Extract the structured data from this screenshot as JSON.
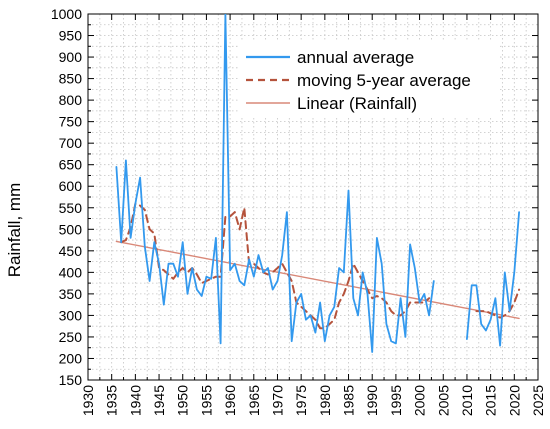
{
  "chart_data": {
    "type": "line",
    "xlabel": "",
    "ylabel": "Rainfall, mm",
    "xlim": [
      1930,
      2025
    ],
    "ylim": [
      150,
      1000
    ],
    "x_ticks": [
      "1930",
      "1935",
      "1940",
      "1945",
      "1950",
      "1955",
      "1960",
      "1965",
      "1970",
      "1975",
      "1980",
      "1985",
      "1990",
      "1995",
      "2000",
      "2005",
      "2010",
      "2015",
      "2020",
      "2025"
    ],
    "y_ticks": [
      "150",
      "200",
      "250",
      "300",
      "350",
      "400",
      "450",
      "500",
      "550",
      "600",
      "650",
      "700",
      "750",
      "800",
      "850",
      "900",
      "950",
      "1000"
    ],
    "grid": true,
    "legend_position": "top-right",
    "colors": {
      "annual": "#3399ee",
      "moving": "#b5533c",
      "linear": "#d98878",
      "grid": "#c4c4c4"
    },
    "series": [
      {
        "name": "annual average",
        "style": "solid",
        "x": [
          1936,
          1937,
          1938,
          1939,
          1940,
          1941,
          1942,
          1943,
          1944,
          1945,
          1946,
          1947,
          1948,
          1949,
          1950,
          1951,
          1952,
          1953,
          1954,
          1955,
          1956,
          1957,
          1958,
          1959,
          1960,
          1961,
          1962,
          1963,
          1964,
          1965,
          1966,
          1967,
          1968,
          1969,
          1970,
          1971,
          1972,
          1973,
          1974,
          1975,
          1976,
          1977,
          1978,
          1979,
          1980,
          1981,
          1982,
          1983,
          1984,
          1985,
          1986,
          1987,
          1988,
          1989,
          1990,
          1991,
          1992,
          1993,
          1994,
          1995,
          1996,
          1997,
          1998,
          1999,
          2000,
          2001,
          2002,
          2003,
          null,
          2010,
          2011,
          2012,
          2013,
          2014,
          2015,
          2016,
          2017,
          2018,
          2019,
          2020,
          2021
        ],
        "y": [
          645,
          470,
          660,
          480,
          560,
          620,
          460,
          380,
          470,
          420,
          325,
          420,
          420,
          390,
          470,
          350,
          410,
          360,
          345,
          390,
          385,
          480,
          235,
          1000,
          405,
          420,
          380,
          370,
          430,
          390,
          440,
          400,
          410,
          360,
          380,
          440,
          540,
          240,
          330,
          350,
          290,
          300,
          260,
          330,
          240,
          300,
          320,
          410,
          400,
          590,
          340,
          300,
          400,
          350,
          215,
          480,
          420,
          280,
          240,
          235,
          340,
          250,
          465,
          410,
          330,
          350,
          300,
          380,
          null,
          245,
          370,
          370,
          280,
          265,
          290,
          340,
          230,
          400,
          310,
          400,
          540
        ]
      },
      {
        "name": "moving 5-year average",
        "style": "dashed",
        "x": [
          1937,
          1938,
          1939,
          1940,
          1941,
          1942,
          1943,
          1944,
          1945,
          1946,
          1947,
          1948,
          1949,
          1950,
          1951,
          1952,
          1953,
          1954,
          1955,
          1956,
          1957,
          1958,
          1959,
          1960,
          1961,
          1962,
          1963,
          1964,
          1965,
          1966,
          1967,
          1968,
          1969,
          1970,
          1971,
          1972,
          1973,
          1974,
          1975,
          1976,
          1977,
          1978,
          1979,
          1980,
          1981,
          1982,
          1983,
          1984,
          1985,
          1986,
          1987,
          1988,
          1989,
          1990,
          1991,
          1992,
          1993,
          1994,
          1995,
          1996,
          1997,
          1998,
          1999,
          2000,
          2001,
          2002,
          null,
          2012,
          2013,
          2014,
          2015,
          2016,
          2017,
          2018,
          2019,
          2020,
          2021
        ],
        "y": [
          470,
          475,
          505,
          560,
          555,
          545,
          500,
          490,
          410,
          405,
          395,
          385,
          400,
          410,
          400,
          410,
          395,
          375,
          380,
          385,
          390,
          390,
          530,
          530,
          540,
          500,
          550,
          420,
          420,
          410,
          400,
          395,
          400,
          410,
          420,
          400,
          380,
          330,
          320,
          310,
          300,
          290,
          270,
          270,
          280,
          290,
          330,
          350,
          380,
          420,
          400,
          380,
          360,
          340,
          345,
          340,
          330,
          310,
          300,
          300,
          310,
          330,
          330,
          330,
          330,
          340,
          null,
          310,
          310,
          310,
          305,
          300,
          295,
          300,
          310,
          330,
          360
        ]
      },
      {
        "name": "Linear (Rainfall)",
        "style": "solid-thin",
        "x": [
          1936,
          2021
        ],
        "y": [
          472,
          293
        ]
      }
    ]
  }
}
